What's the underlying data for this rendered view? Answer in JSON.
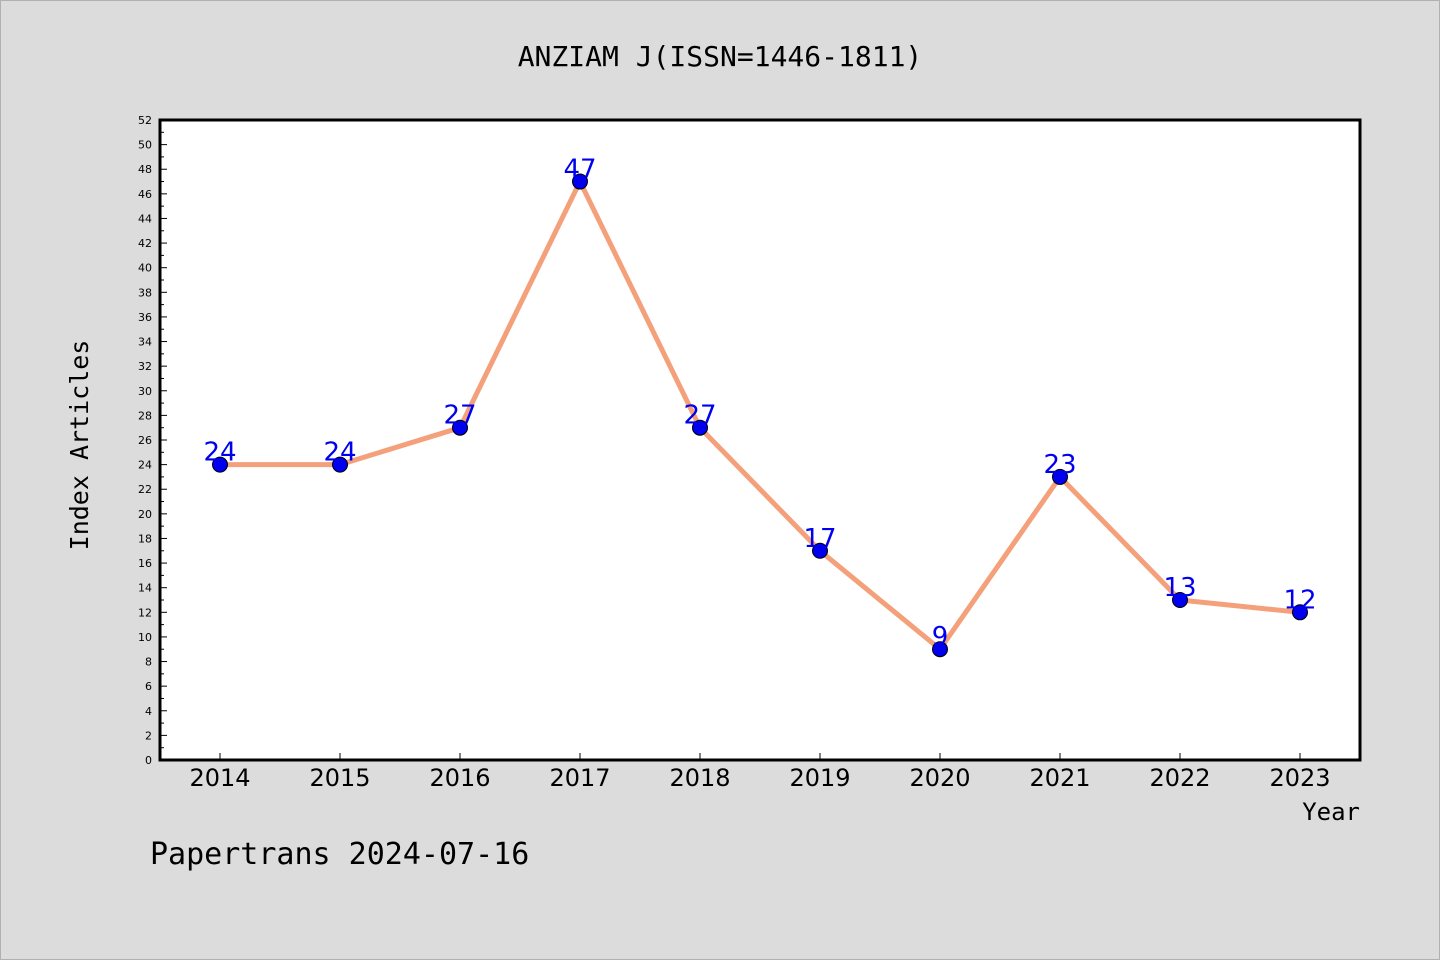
{
  "chart_data": {
    "type": "line",
    "title": "ANZIAM J(ISSN=1446-1811)",
    "xlabel": "Year",
    "ylabel": "Index Articles",
    "categories": [
      "2014",
      "2015",
      "2016",
      "2017",
      "2018",
      "2019",
      "2020",
      "2021",
      "2022",
      "2023"
    ],
    "series": [
      {
        "values": [
          24,
          24,
          27,
          47,
          27,
          17,
          9,
          23,
          13,
          12
        ]
      }
    ],
    "ylim": [
      0,
      52
    ],
    "ytick_step": 2,
    "grid": false,
    "data_labels": true,
    "colors": {
      "line": "#f4a07a",
      "marker": "#0000ee",
      "label": "#0000ee",
      "background": "#dcdcdc",
      "plot_bg": "#ffffff"
    }
  },
  "footer": {
    "text": "Papertrans 2024-07-16"
  }
}
